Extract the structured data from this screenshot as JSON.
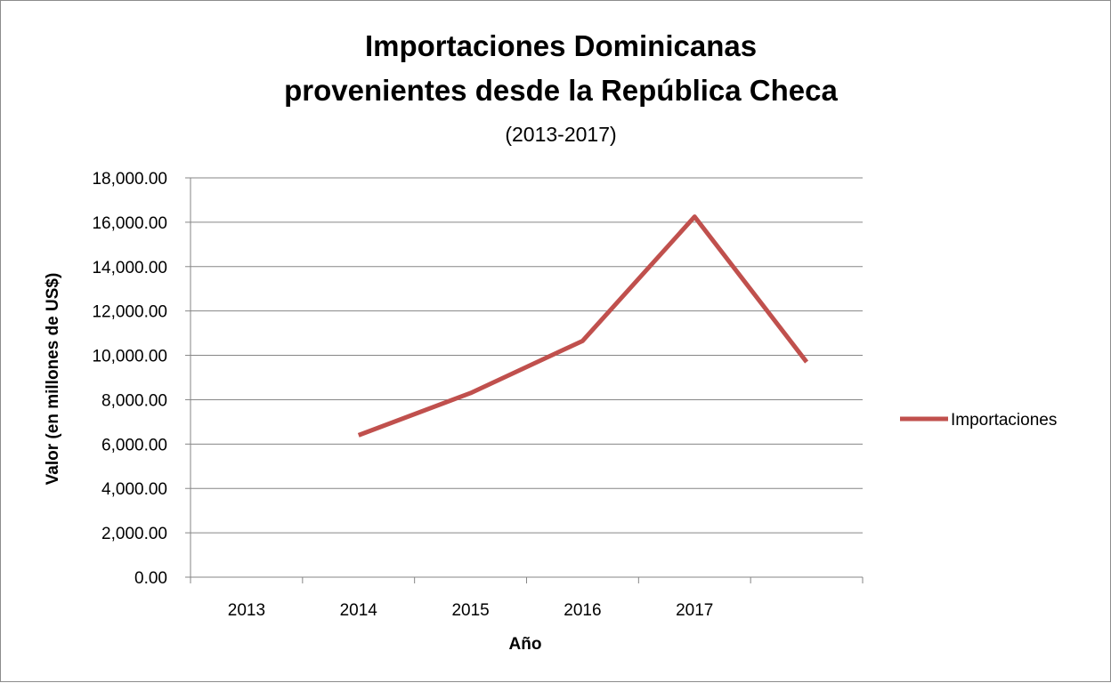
{
  "chart_data": {
    "type": "line",
    "title_line1": "Importaciones Dominicanas",
    "title_line2": "provenientes desde la República Checa",
    "subtitle": "(2013-2017)",
    "xlabel": "Año",
    "ylabel": "Valor (en millones de US$)",
    "categories": [
      "2013",
      "2014",
      "2015",
      "2016",
      "2017",
      ""
    ],
    "yticks": [
      "0.00",
      "2,000.00",
      "4,000.00",
      "6,000.00",
      "8,000.00",
      "10,000.00",
      "12,000.00",
      "14,000.00",
      "16,000.00",
      "18,000.00"
    ],
    "ylim": [
      0,
      18000
    ],
    "grid": true,
    "legend_position": "right",
    "series": [
      {
        "name": "Importaciones",
        "color": "#c0504d",
        "values": [
          null,
          6400,
          8300,
          10650,
          16250,
          9700
        ]
      }
    ]
  }
}
